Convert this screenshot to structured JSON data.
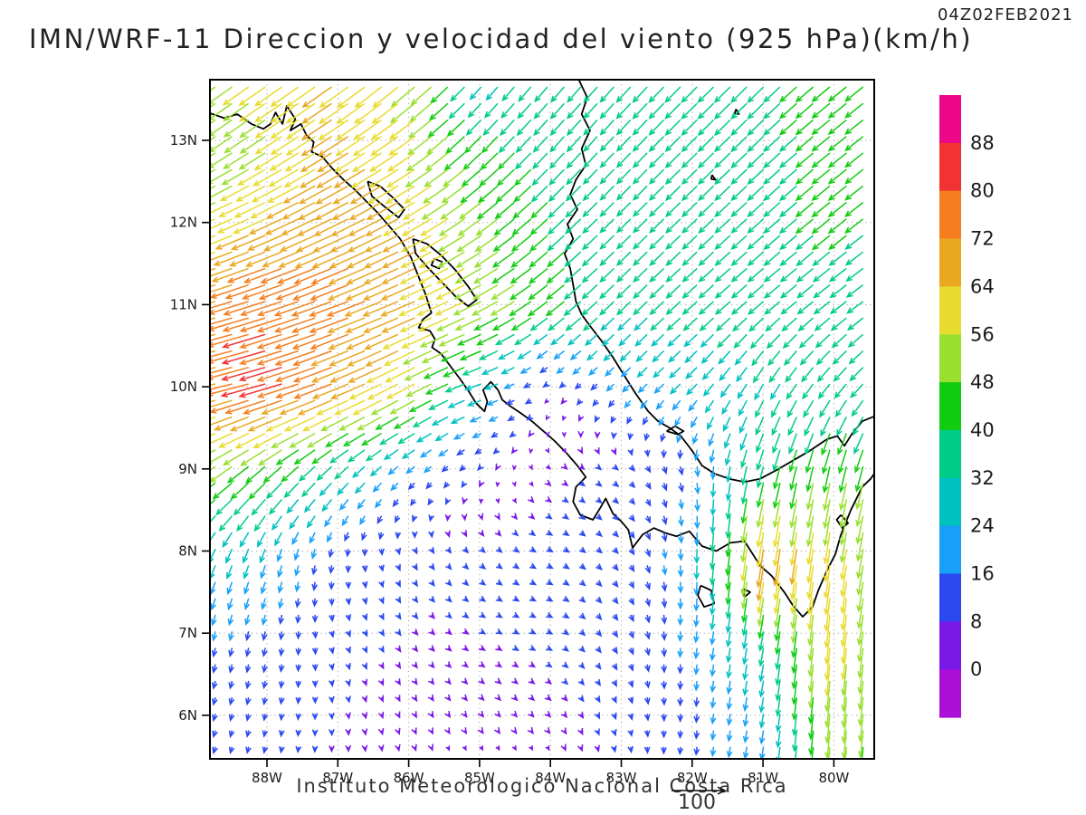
{
  "header": {
    "title": "IMN/WRF-11 Direccion y velocidad del viento (925 hPa)(km/h)",
    "date": "04Z02FEB2021"
  },
  "footer": {
    "credit": "Instituto Meteorologico Nacional Costa Rica",
    "ref_label": "100"
  },
  "chart_data": {
    "type": "vector-field-map",
    "title": "IMN/WRF-11 Direccion y velocidad del viento (925 hPa)(km/h)",
    "valid_time": "04Z02FEB2021",
    "units": "km/h",
    "pressure_level": "925 hPa",
    "reference_vector_value": 100,
    "extent": {
      "lon_min": -88.8,
      "lon_max": -79.43,
      "lat_min": 5.47,
      "lat_max": 13.74
    },
    "grid_on": true,
    "x_axis": {
      "ticks": [
        {
          "label": "88W",
          "lon": -88
        },
        {
          "label": "87W",
          "lon": -87
        },
        {
          "label": "86W",
          "lon": -86
        },
        {
          "label": "85W",
          "lon": -85
        },
        {
          "label": "84W",
          "lon": -84
        },
        {
          "label": "83W",
          "lon": -83
        },
        {
          "label": "82W",
          "lon": -82
        },
        {
          "label": "81W",
          "lon": -81
        },
        {
          "label": "80W",
          "lon": -80
        }
      ]
    },
    "y_axis": {
      "ticks": [
        {
          "label": "13N",
          "lat": 13
        },
        {
          "label": "12N",
          "lat": 12
        },
        {
          "label": "11N",
          "lat": 11
        },
        {
          "label": "10N",
          "lat": 10
        },
        {
          "label": "9N",
          "lat": 9
        },
        {
          "label": "8N",
          "lat": 8
        },
        {
          "label": "7N",
          "lat": 7
        },
        {
          "label": "6N",
          "lat": 6
        }
      ]
    },
    "colorbar": {
      "levels": [
        0,
        8,
        16,
        24,
        32,
        40,
        48,
        56,
        64,
        72,
        80,
        88
      ],
      "colors_bottom_to_top": [
        "#AA10D8",
        "#7A18E8",
        "#2A48F0",
        "#18A0F8",
        "#00C0C0",
        "#00CC88",
        "#12CC12",
        "#9ADF30",
        "#E8DC30",
        "#E9A820",
        "#F57F1F",
        "#F23333",
        "#EE0688"
      ]
    },
    "wind_grid": {
      "comment_units": "u eastward, v northward, km/h, 1-degree grid",
      "lons": [
        -89,
        -88,
        -87,
        -86,
        -85,
        -84,
        -83,
        -82,
        -81,
        -80,
        -79
      ],
      "lats": [
        5,
        6,
        7,
        8,
        9,
        10,
        11,
        12,
        13,
        14
      ],
      "u": [
        [
          -4,
          -2,
          -1,
          0,
          1,
          -1,
          0,
          -2,
          -3,
          -4,
          -4
        ],
        [
          -4,
          -2,
          1,
          3,
          4,
          5,
          3,
          -1,
          -4,
          -5,
          -5
        ],
        [
          -4,
          -3,
          3,
          5,
          7,
          8,
          6,
          -2,
          -6,
          -6,
          -8
        ],
        [
          -12,
          -8,
          -2,
          4,
          7,
          9,
          7,
          0,
          -10,
          -8,
          -10
        ],
        [
          -45,
          -33,
          -24,
          -14,
          -5,
          5,
          8,
          3,
          -10,
          -10,
          -14
        ],
        [
          -66,
          -80,
          -66,
          -52,
          -28,
          -5,
          -13,
          -18,
          -15,
          -20,
          -24
        ],
        [
          -66,
          -76,
          -72,
          -62,
          -50,
          -34,
          -24,
          -25,
          -27,
          -28,
          -29
        ],
        [
          -52,
          -58,
          -62,
          -58,
          -42,
          -30,
          -24,
          -26,
          -28,
          -32,
          -32
        ],
        [
          -38,
          -45,
          -55,
          -48,
          -30,
          -25,
          -24,
          -27,
          -28,
          -32,
          -32
        ],
        [
          -45,
          -48,
          -52,
          -42,
          -14,
          -22,
          -25,
          -28,
          -28,
          -32,
          -32
        ]
      ],
      "v": [
        [
          -10,
          -9,
          -7,
          -6,
          -5,
          -5,
          -8,
          -12,
          -20,
          -44,
          -40
        ],
        [
          -12,
          -11,
          -8,
          -6,
          -5,
          -5,
          -9,
          -14,
          -24,
          -54,
          -44
        ],
        [
          -16,
          -15,
          -9,
          -6,
          -4,
          -4,
          -10,
          -18,
          -34,
          -60,
          -46
        ],
        [
          -26,
          -24,
          -13,
          -8,
          -6,
          -5,
          -8,
          -22,
          -70,
          -58,
          -46
        ],
        [
          -28,
          -30,
          -24,
          -12,
          -6,
          -4,
          -6,
          -16,
          -38,
          -48,
          -42
        ],
        [
          -14,
          -22,
          -26,
          -28,
          -10,
          -4,
          -13,
          -18,
          -28,
          -26,
          -22
        ],
        [
          -18,
          -24,
          -26,
          -26,
          -24,
          -26,
          -24,
          -23,
          -23,
          -22,
          -20
        ],
        [
          -22,
          -26,
          -30,
          -30,
          -30,
          -28,
          -24,
          -25,
          -25,
          -26,
          -24
        ],
        [
          -26,
          -30,
          -35,
          -34,
          -30,
          -28,
          -26,
          -27,
          -27,
          -26,
          -25
        ],
        [
          -32,
          -35,
          -38,
          -38,
          -18,
          -26,
          -28,
          -28,
          -28,
          -26,
          -25
        ]
      ]
    },
    "map": {
      "features": [
        {
          "name": "pacific-coast",
          "points": [
            -88.8,
            13.33,
            -88.6,
            13.27,
            -88.42,
            13.32,
            -88.22,
            13.2,
            -88.05,
            13.14,
            -87.95,
            13.2,
            -87.88,
            13.34,
            -87.78,
            13.2,
            -87.72,
            13.42,
            -87.6,
            13.26,
            -87.67,
            13.12,
            -87.52,
            13.2,
            -87.44,
            13.06,
            -87.34,
            12.98,
            -87.37,
            12.86,
            -87.22,
            12.8,
            -87.08,
            12.66,
            -86.92,
            12.52,
            -86.76,
            12.4,
            -86.6,
            12.26,
            -86.44,
            12.12,
            -86.28,
            11.96,
            -86.12,
            11.8,
            -85.97,
            11.58,
            -85.87,
            11.36,
            -85.76,
            11.12,
            -85.68,
            10.9,
            -85.8,
            10.82,
            -85.86,
            10.72,
            -85.7,
            10.68,
            -85.63,
            10.58,
            -85.67,
            10.48,
            -85.54,
            10.4,
            -85.42,
            10.26,
            -85.28,
            10.1,
            -85.15,
            9.94,
            -85.05,
            9.8,
            -84.93,
            9.7,
            -84.89,
            9.82,
            -84.95,
            9.96,
            -84.84,
            10.06,
            -84.74,
            9.96,
            -84.68,
            9.84,
            -84.56,
            9.76,
            -84.42,
            9.68,
            -84.26,
            9.58,
            -84.1,
            9.46,
            -83.94,
            9.34,
            -83.78,
            9.2,
            -83.62,
            9.04,
            -83.5,
            8.9,
            -83.64,
            8.78,
            -83.68,
            8.6,
            -83.58,
            8.44,
            -83.4,
            8.38,
            -83.3,
            8.52,
            -83.22,
            8.64,
            -83.12,
            8.46,
            -83.0,
            8.36,
            -82.9,
            8.26,
            -82.84,
            8.04,
            -82.7,
            8.2,
            -82.54,
            8.28,
            -82.38,
            8.22,
            -82.22,
            8.18,
            -82.04,
            8.24,
            -81.86,
            8.06,
            -81.66,
            8.0,
            -81.46,
            8.1,
            -81.26,
            8.12,
            -81.04,
            7.82,
            -80.88,
            7.7,
            -80.7,
            7.5,
            -80.58,
            7.34,
            -80.44,
            7.2,
            -80.3,
            7.32,
            -80.22,
            7.52,
            -80.1,
            7.76,
            -79.98,
            7.96,
            -79.9,
            8.2,
            -79.76,
            8.5,
            -79.6,
            8.78,
            -79.48,
            8.88,
            -79.43,
            8.94
          ]
        },
        {
          "name": "caribbean-coast",
          "points": [
            -83.6,
            13.74,
            -83.48,
            13.52,
            -83.56,
            13.32,
            -83.44,
            13.12,
            -83.56,
            12.9,
            -83.5,
            12.7,
            -83.64,
            12.52,
            -83.72,
            12.34,
            -83.62,
            12.16,
            -83.76,
            11.98,
            -83.68,
            11.8,
            -83.8,
            11.62,
            -83.72,
            11.44,
            -83.68,
            11.24,
            -83.64,
            11.04,
            -83.56,
            10.88,
            -83.44,
            10.74,
            -83.28,
            10.56,
            -83.12,
            10.36,
            -82.96,
            10.14,
            -82.8,
            9.92,
            -82.62,
            9.7,
            -82.48,
            9.58,
            -82.32,
            9.5,
            -82.16,
            9.4,
            -82.0,
            9.22,
            -81.86,
            9.04,
            -81.68,
            8.94,
            -81.48,
            8.88,
            -81.26,
            8.84,
            -81.04,
            8.88,
            -80.82,
            8.98,
            -80.58,
            9.1,
            -80.34,
            9.22,
            -80.1,
            9.36,
            -79.95,
            9.4,
            -79.85,
            9.28,
            -79.75,
            9.42,
            -79.6,
            9.58,
            -79.43,
            9.64
          ]
        },
        {
          "name": "lake-nicaragua",
          "points": [
            -85.94,
            11.8,
            -85.74,
            11.74,
            -85.54,
            11.6,
            -85.34,
            11.42,
            -85.16,
            11.22,
            -85.04,
            11.06,
            -85.16,
            10.98,
            -85.34,
            11.1,
            -85.54,
            11.28,
            -85.74,
            11.46,
            -85.9,
            11.62,
            -85.94,
            11.8
          ]
        },
        {
          "name": "lake-managua",
          "points": [
            -86.58,
            12.5,
            -86.4,
            12.44,
            -86.22,
            12.3,
            -86.06,
            12.16,
            -86.14,
            12.06,
            -86.32,
            12.18,
            -86.52,
            12.32,
            -86.58,
            12.5
          ]
        },
        {
          "name": "ometepe-island",
          "points": [
            -85.64,
            11.56,
            -85.53,
            11.52,
            -85.57,
            11.44,
            -85.68,
            11.48,
            -85.64,
            11.56
          ]
        },
        {
          "name": "coiba-island",
          "points": [
            -81.88,
            7.58,
            -81.73,
            7.52,
            -81.69,
            7.36,
            -81.83,
            7.32,
            -81.92,
            7.46,
            -81.88,
            7.58
          ]
        },
        {
          "name": "cebaco-island",
          "points": [
            -81.28,
            7.54,
            -81.18,
            7.5,
            -81.26,
            7.44,
            -81.28,
            7.54
          ]
        },
        {
          "name": "san-andres-island",
          "points": [
            -81.72,
            12.58,
            -81.67,
            12.52,
            -81.73,
            12.53,
            -81.72,
            12.58
          ]
        },
        {
          "name": "providencia-island",
          "points": [
            -81.38,
            13.38,
            -81.34,
            13.32,
            -81.4,
            13.33,
            -81.38,
            13.38
          ]
        },
        {
          "name": "bocas-islands",
          "points": [
            -82.36,
            9.46,
            -82.24,
            9.52,
            -82.12,
            9.46,
            -82.2,
            9.42,
            -82.36,
            9.46
          ]
        },
        {
          "name": "panama-bay-islets",
          "points": [
            -79.9,
            8.44,
            -79.8,
            8.34,
            -79.88,
            8.28,
            -79.96,
            8.38,
            -79.9,
            8.44
          ]
        }
      ]
    }
  }
}
